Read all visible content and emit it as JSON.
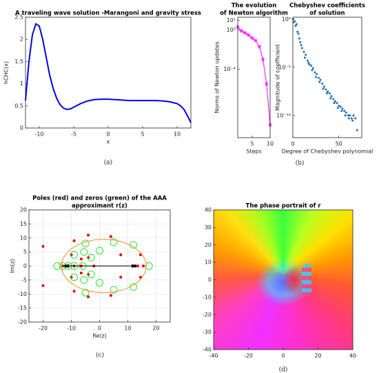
{
  "chart_data": [
    {
      "type": "line",
      "title": [
        "A traveling wave solution -Marangoni and gravity stress"
      ],
      "xlabel": "x",
      "ylabel": "hCHC(x)",
      "panel_label": "(a)",
      "x": [
        -12,
        -11.5,
        -11,
        -10.5,
        -10,
        -9.5,
        -9,
        -8.5,
        -8,
        -7.5,
        -7,
        -6.5,
        -6,
        -5.5,
        -5,
        -4,
        -3,
        -2,
        -1,
        0,
        1,
        2,
        3,
        4,
        5,
        6,
        7,
        8,
        9,
        10,
        10.5,
        11,
        11.5,
        12
      ],
      "values": [
        0.62,
        1.5,
        2.1,
        2.35,
        2.3,
        2.0,
        1.6,
        1.2,
        0.9,
        0.68,
        0.53,
        0.45,
        0.42,
        0.43,
        0.47,
        0.55,
        0.61,
        0.64,
        0.65,
        0.65,
        0.64,
        0.63,
        0.62,
        0.62,
        0.62,
        0.62,
        0.62,
        0.61,
        0.59,
        0.55,
        0.5,
        0.42,
        0.28,
        0.12
      ],
      "color": "#0000ee",
      "xlim": [
        -12,
        12
      ],
      "xticks": [
        -10,
        -5,
        0,
        5,
        10
      ],
      "ylim": [
        0,
        2.5
      ],
      "yticks": [
        0,
        0.5,
        1,
        1.5,
        2,
        2.5
      ],
      "grid": false
    },
    {
      "type": "line",
      "title": [
        "The evolution",
        "of Newton algorithm"
      ],
      "xlabel": "Steps",
      "ylabel": "Norms of Newton updates",
      "panel_label": "(b)",
      "x": [
        1,
        2,
        3,
        4,
        5,
        6,
        7,
        8,
        9,
        10
      ],
      "values": [
        2,
        0.8,
        0.5,
        0.3,
        0.15,
        0.08,
        0.02,
        0.001,
        3e-06,
        2e-10
      ],
      "color": "#ff00ff",
      "marker": "asterisk",
      "yscale": "log",
      "xlim": [
        1,
        10
      ],
      "xticks": [
        5,
        10
      ],
      "ylim": [
        1e-11,
        20
      ],
      "yticks": [
        {
          "value": 10,
          "label": "10¹"
        },
        {
          "value": 1,
          "label": "10⁰"
        },
        {
          "value": 0.0001,
          "label": "10⁻⁴"
        }
      ],
      "grid": false
    },
    {
      "type": "scatter",
      "title": [
        "Chebyshev coefficients",
        "of solution"
      ],
      "xlabel": "Degree of Chebyshev polynomial",
      "ylabel": "Magnitude of coefficient",
      "x": [
        0,
        1,
        2,
        3,
        4,
        5,
        6,
        7,
        8,
        9,
        10,
        12,
        13,
        14,
        16,
        17,
        18,
        20,
        21,
        22,
        24,
        25,
        26,
        28,
        29,
        30,
        32,
        33,
        34,
        36,
        37,
        38,
        40,
        41,
        42,
        44,
        45,
        46,
        48,
        49,
        50,
        52,
        53,
        54,
        56,
        57,
        58,
        60,
        61,
        62,
        64,
        65,
        66,
        68,
        70
      ],
      "values": [
        1,
        0.5,
        0.6,
        0.2,
        0.3,
        0.05,
        0.03,
        0.01,
        0.004,
        0.002,
        0.001,
        0.0004,
        0.0001,
        0.0002,
        5e-05,
        3e-05,
        2e-05,
        1.5e-05,
        5e-06,
        8e-06,
        3e-06,
        1e-06,
        2e-06,
        8e-07,
        3e-07,
        5e-07,
        2e-07,
        6e-08,
        1e-07,
        5e-08,
        2e-08,
        3e-08,
        2e-08,
        6e-09,
        1e-08,
        5e-09,
        2e-09,
        3e-09,
        2e-09,
        6e-10,
        1e-09,
        8e-10,
        3e-10,
        5e-10,
        3e-10,
        1e-10,
        2e-10,
        1e-10,
        5e-11,
        1e-10,
        5e-11,
        3e-11,
        1e-10,
        5e-11,
        3e-12
      ],
      "color": "#1f6fb4",
      "yscale": "log",
      "xlim": [
        0,
        75
      ],
      "xticks": [
        0,
        50
      ],
      "ylim": [
        5e-13,
        1.6
      ],
      "yticks": [
        {
          "value": 1,
          "label": "10⁰"
        },
        {
          "value": 1e-05,
          "label": "10⁻⁵"
        },
        {
          "value": 1e-10,
          "label": "10⁻¹⁰"
        }
      ],
      "grid": false
    },
    {
      "type": "scatter",
      "title": [
        "Poles (red) and zeros (green) of the AAA",
        "approximant r(z)"
      ],
      "xlabel": "Re(z)",
      "ylabel": "Im(z)",
      "panel_label": "(c)",
      "series": [
        {
          "color": "#ee0000",
          "marker": "dot",
          "x": [
            -20,
            -20,
            -9,
            -9,
            -4,
            -4,
            4,
            4,
            7.5,
            7.5,
            14.5,
            14.5,
            13.5,
            15.5,
            -6.5,
            -6.5,
            -4,
            -4,
            -9,
            -6.5,
            -12,
            -13,
            -10,
            -10,
            -2
          ],
          "values": [
            7,
            -7,
            9,
            -9,
            11,
            -11,
            10.5,
            -10.5,
            4,
            -4,
            4,
            -4,
            0,
            0,
            2.5,
            -2.5,
            3,
            -3,
            0,
            0,
            0,
            0,
            4,
            -4,
            0
          ]
        },
        {
          "color": "#22dd22",
          "marker": "circle",
          "x": [
            -15,
            -13,
            -11,
            -9,
            -9,
            -9,
            -5.5,
            -5.5,
            -3,
            -3,
            -6,
            0,
            0,
            5,
            5,
            12,
            12,
            17.5,
            -5,
            -5
          ],
          "values": [
            0,
            0,
            0,
            0,
            4,
            -4,
            5,
            -5,
            3,
            -3,
            0,
            5.5,
            -6,
            8.5,
            -8.5,
            7.5,
            -7.5,
            0,
            8,
            -9.5
          ]
        }
      ],
      "ellipse": {
        "cx": 1.5,
        "cy": 0,
        "rx": 15,
        "ry": 9.5,
        "color": "#e69020"
      },
      "arrow": {
        "x": [
          -12,
          12.5
        ],
        "y": [
          0,
          0
        ],
        "color": "#000000"
      },
      "xlim": [
        -25,
        25
      ],
      "xticks": [
        -20,
        -10,
        0,
        10,
        20
      ],
      "ylim": [
        -20,
        20
      ],
      "yticks": [
        -20,
        -15,
        -10,
        -5,
        0,
        5,
        10,
        15,
        20
      ],
      "grid": true
    },
    {
      "type": "image",
      "title": [
        "The phase portrait of r"
      ],
      "panel_label": "(d)",
      "xlim": [
        -40,
        40
      ],
      "xticks": [
        -40,
        -20,
        0,
        20,
        40
      ],
      "ylim": [
        -40,
        40
      ],
      "yticks": [
        -40,
        -30,
        -20,
        -10,
        0,
        10,
        20,
        30,
        40
      ],
      "grid": false
    }
  ]
}
